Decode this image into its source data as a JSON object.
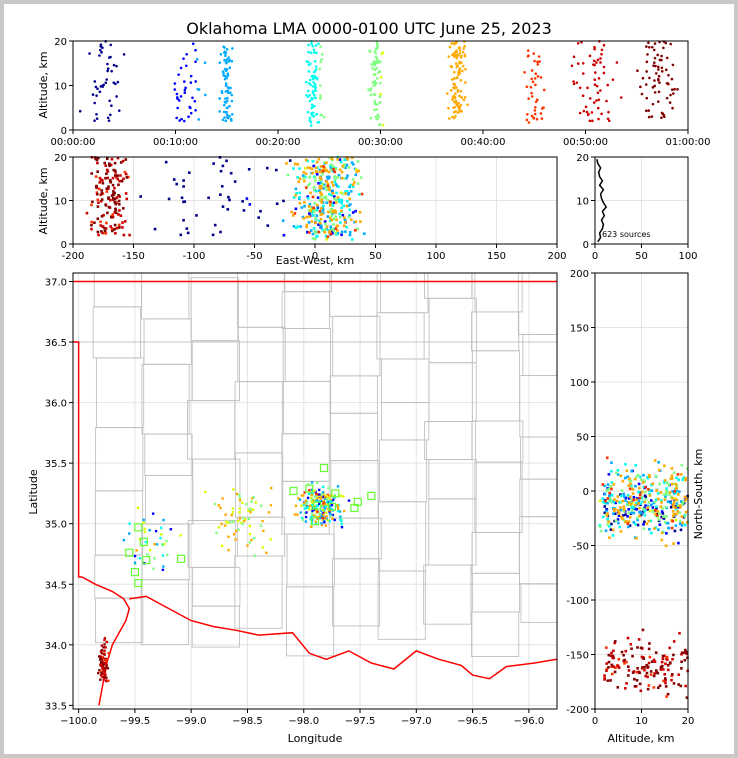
{
  "title": "Oklahoma LMA 0000-0100 UTC June 25, 2023",
  "colors": {
    "time_ramp": [
      "#00008b",
      "#0000ff",
      "#00aaff",
      "#00ffee",
      "#80ff80",
      "#ddff00",
      "#ffaa00",
      "#ff3300",
      "#cc0000",
      "#800000"
    ],
    "county_lines": "#c0c0c0",
    "state_border": "#ff0000",
    "station_marker": "#66ff33"
  },
  "chart_data": [
    {
      "id": "time_height",
      "type": "scatter",
      "xlabel": "",
      "ylabel": "Altitude, km",
      "xticks": [
        "00:00:00",
        "00:10:00",
        "00:20:00",
        "00:30:00",
        "00:40:00",
        "00:50:00",
        "01:00:00"
      ],
      "xlim_minutes": [
        0,
        60
      ],
      "ylim": [
        0,
        20
      ],
      "yticks": [
        0,
        10,
        20
      ],
      "clusters": [
        {
          "t_center_min": 3,
          "t_spread": 3,
          "alt_range": [
            2,
            20
          ],
          "count": 45
        },
        {
          "t_center_min": 11,
          "t_spread": 2.5,
          "alt_range": [
            2,
            20
          ],
          "count": 40
        },
        {
          "t_center_min": 15,
          "t_spread": 0.8,
          "alt_range": [
            2,
            20
          ],
          "count": 70
        },
        {
          "t_center_min": 23.5,
          "t_spread": 1.2,
          "alt_range": [
            1,
            20
          ],
          "count": 80
        },
        {
          "t_center_min": 29.5,
          "t_spread": 0.9,
          "alt_range": [
            1,
            20
          ],
          "count": 70
        },
        {
          "t_center_min": 37.5,
          "t_spread": 1.2,
          "alt_range": [
            2,
            20
          ],
          "count": 110
        },
        {
          "t_center_min": 45,
          "t_spread": 1.5,
          "alt_range": [
            1,
            20
          ],
          "count": 40
        },
        {
          "t_center_min": 51,
          "t_spread": 3,
          "alt_range": [
            2,
            20
          ],
          "count": 60
        },
        {
          "t_center_min": 57,
          "t_spread": 2.5,
          "alt_range": [
            2,
            20
          ],
          "count": 70
        }
      ],
      "total_sources": 623
    },
    {
      "id": "ew_height",
      "type": "scatter",
      "xlabel": "East-West, km",
      "ylabel": "Altitude, km",
      "xlim": [
        -200,
        200
      ],
      "xticks": [
        -200,
        -150,
        -100,
        -50,
        0,
        50,
        100,
        150,
        200
      ],
      "ylim": [
        0,
        20
      ],
      "yticks": [
        0,
        10,
        20
      ]
    },
    {
      "id": "height_histogram",
      "type": "line",
      "xlim": [
        0,
        100
      ],
      "xticks": [
        0,
        50,
        100
      ],
      "ylim": [
        0,
        20
      ],
      "yticks": [
        0,
        10,
        20
      ],
      "annotation": "623 sources",
      "profile": [
        {
          "alt": 0.5,
          "count": 3
        },
        {
          "alt": 1.5,
          "count": 6
        },
        {
          "alt": 2.5,
          "count": 5
        },
        {
          "alt": 3.5,
          "count": 8
        },
        {
          "alt": 4.5,
          "count": 9
        },
        {
          "alt": 5.5,
          "count": 7
        },
        {
          "alt": 6.5,
          "count": 10
        },
        {
          "alt": 7.5,
          "count": 8
        },
        {
          "alt": 8.5,
          "count": 12
        },
        {
          "alt": 9.5,
          "count": 9
        },
        {
          "alt": 10.5,
          "count": 7
        },
        {
          "alt": 11.5,
          "count": 6
        },
        {
          "alt": 12.5,
          "count": 9
        },
        {
          "alt": 13.5,
          "count": 5
        },
        {
          "alt": 14.5,
          "count": 8
        },
        {
          "alt": 15.5,
          "count": 5
        },
        {
          "alt": 16.5,
          "count": 4
        },
        {
          "alt": 17.5,
          "count": 6
        },
        {
          "alt": 18.5,
          "count": 3
        },
        {
          "alt": 19.5,
          "count": 2
        }
      ]
    },
    {
      "id": "plan_view",
      "type": "scatter",
      "xlabel": "Longitude",
      "ylabel": "Latitude",
      "xlim": [
        -100.05,
        -95.75
      ],
      "xticks": [
        -100.0,
        -99.5,
        -99.0,
        -98.5,
        -98.0,
        -97.5,
        -97.0,
        -96.5,
        -96.0
      ],
      "xtick_labels": [
        "−100.0",
        "−99.5",
        "−99.0",
        "−98.5",
        "−98.0",
        "−97.5",
        "−97.0",
        "−96.5",
        "−96.0"
      ],
      "ylim": [
        33.47,
        37.07
      ],
      "yticks": [
        33.5,
        34.0,
        34.5,
        35.0,
        35.5,
        36.0,
        36.5,
        37.0
      ],
      "stations": [
        {
          "lon": -99.47,
          "lat": 34.97
        },
        {
          "lon": -99.42,
          "lat": 34.85
        },
        {
          "lon": -99.55,
          "lat": 34.76
        },
        {
          "lon": -99.4,
          "lat": 34.7
        },
        {
          "lon": -99.5,
          "lat": 34.6
        },
        {
          "lon": -99.47,
          "lat": 34.51
        },
        {
          "lon": -99.09,
          "lat": 34.71
        },
        {
          "lon": -98.09,
          "lat": 35.27
        },
        {
          "lon": -97.95,
          "lat": 35.29
        },
        {
          "lon": -97.82,
          "lat": 35.46
        },
        {
          "lon": -97.72,
          "lat": 35.25
        },
        {
          "lon": -97.88,
          "lat": 35.15
        },
        {
          "lon": -97.75,
          "lat": 35.14
        },
        {
          "lon": -97.55,
          "lat": 35.13
        },
        {
          "lon": -97.4,
          "lat": 35.23
        },
        {
          "lon": -97.9,
          "lat": 35.02
        },
        {
          "lon": -97.52,
          "lat": 35.18
        }
      ],
      "clusters": [
        {
          "lon": -99.78,
          "lat": 33.85,
          "slon": 0.06,
          "slat": 0.25,
          "count": 70,
          "tmin": 46,
          "tmax": 60
        },
        {
          "lon": -97.85,
          "lat": 35.15,
          "slon": 0.28,
          "slat": 0.25,
          "count": 220,
          "tmin": 8,
          "tmax": 45
        },
        {
          "lon": -98.55,
          "lat": 35.05,
          "slon": 0.45,
          "slat": 0.35,
          "count": 70,
          "tmin": 25,
          "tmax": 42
        },
        {
          "lon": -99.35,
          "lat": 34.85,
          "slon": 0.35,
          "slat": 0.4,
          "count": 40,
          "tmin": 5,
          "tmax": 40
        }
      ]
    },
    {
      "id": "ns_height",
      "type": "scatter",
      "xlabel": "Altitude, km",
      "ylabel": "North-South, km",
      "xlim": [
        0,
        20
      ],
      "xticks": [
        0,
        10,
        20
      ],
      "ylim": [
        -200,
        200
      ],
      "yticks": [
        -200,
        -150,
        -100,
        -50,
        0,
        50,
        100,
        150,
        200
      ]
    }
  ],
  "text": {
    "panel1_ylabel": "Altitude, km",
    "panel2_ylabel": "Altitude, km",
    "panel2_xlabel": "East-West, km",
    "panel3_annotation": "623 sources",
    "panel4_xlabel": "Longitude",
    "panel4_ylabel": "Latitude",
    "panel5_xlabel": "Altitude, km",
    "panel5_ylabel": "North-South, km"
  }
}
